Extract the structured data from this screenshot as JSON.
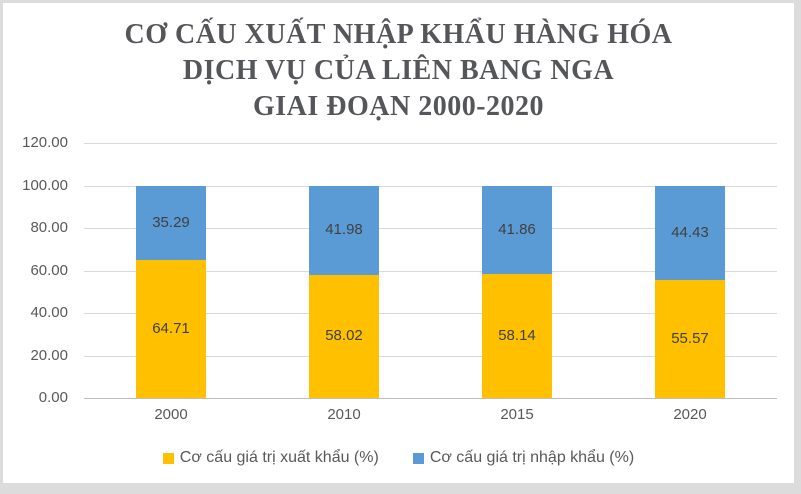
{
  "title": {
    "lines": [
      "CƠ CẤU XUẤT NHẬP KHẨU HÀNG HÓA",
      "DỊCH VỤ CỦA LIÊN BANG NGA",
      "GIAI ĐOẠN 2000-2020"
    ]
  },
  "colors": {
    "export_series": "#FFC000",
    "import_series": "#5B9BD5",
    "gridline": "#D9D9D9",
    "axis_line": "#BFBFBF",
    "axis_text": "#595959",
    "data_label_text": "#404040",
    "title_text": "#555659",
    "chart_background": "#FFFFFF",
    "frame_background": "#DCDCDC"
  },
  "chart_data": {
    "type": "bar",
    "stacked": true,
    "title": "CƠ CẤU XUẤT NHẬP KHẨU HÀNG HÓA DỊCH VỤ CỦA LIÊN BANG NGA GIAI ĐOẠN 2000-2020",
    "categories": [
      "2000",
      "2010",
      "2015",
      "2020"
    ],
    "series": [
      {
        "name": "Cơ cấu giá trị xuất khẩu (%)",
        "color": "#FFC000",
        "values": [
          64.71,
          58.02,
          58.14,
          55.57
        ]
      },
      {
        "name": "Cơ cấu giá trị nhập khẩu (%)",
        "color": "#5B9BD5",
        "values": [
          35.29,
          41.98,
          41.86,
          44.43
        ]
      }
    ],
    "ylim": [
      0,
      120
    ],
    "ytick_values": [
      0,
      20,
      40,
      60,
      80,
      100,
      120
    ],
    "ytick_labels": [
      "0.00",
      "20.00",
      "40.00",
      "60.00",
      "80.00",
      "100.00",
      "120.00"
    ],
    "xlabel": "",
    "ylabel": "",
    "grid": true,
    "data_labels": true,
    "legend_position": "bottom"
  }
}
